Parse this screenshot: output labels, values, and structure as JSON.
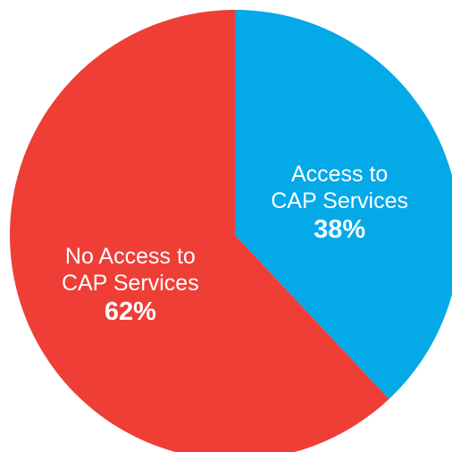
{
  "chart_data": {
    "type": "pie",
    "categories": [
      "Access to CAP Services",
      "No Access to CAP Services"
    ],
    "values": [
      38,
      62
    ],
    "value_labels": [
      "38%",
      "62%"
    ],
    "colors": [
      "#04a9e8",
      "#ee3e36"
    ]
  }
}
